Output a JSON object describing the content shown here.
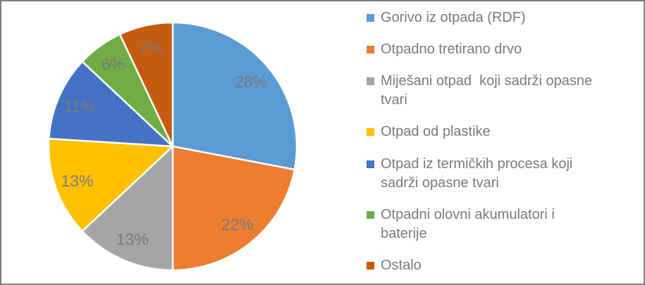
{
  "frame": {
    "border_color": "#7F7F7F",
    "background_color": "#FFFFFF"
  },
  "chart_data": {
    "type": "pie",
    "title": "",
    "legend_position": "right",
    "start_angle_deg": 0,
    "direction": "clockwise",
    "slice_separator_color": "#FFFFFF",
    "data_label_color": "#7B7B7B",
    "legend_text_color": "#7A7A7A",
    "slices": [
      {
        "label": "Gorivo iz otpada (RDF)",
        "value": 28,
        "pct_label": "28%",
        "color": "#5B9BD5"
      },
      {
        "label": "Otpadno tretirano drvo",
        "value": 22,
        "pct_label": "22%",
        "color": "#ED7D31"
      },
      {
        "label": "Miješani otpad  koji sadrži opasne tvari",
        "value": 13,
        "pct_label": "13%",
        "color": "#A5A5A5"
      },
      {
        "label": "Otpad od plastike",
        "value": 13,
        "pct_label": "13%",
        "color": "#FFC000"
      },
      {
        "label": "Otpad iz termičkih procesa koji sadrži opasne tvari",
        "value": 11,
        "pct_label": "11%",
        "color": "#4472C4"
      },
      {
        "label": "Otpadni olovni akumulatori i baterije",
        "value": 6,
        "pct_label": "6%",
        "color": "#70AD47"
      },
      {
        "label": "Ostalo",
        "value": 7,
        "pct_label": "7%",
        "color": "#C55A11"
      }
    ]
  }
}
